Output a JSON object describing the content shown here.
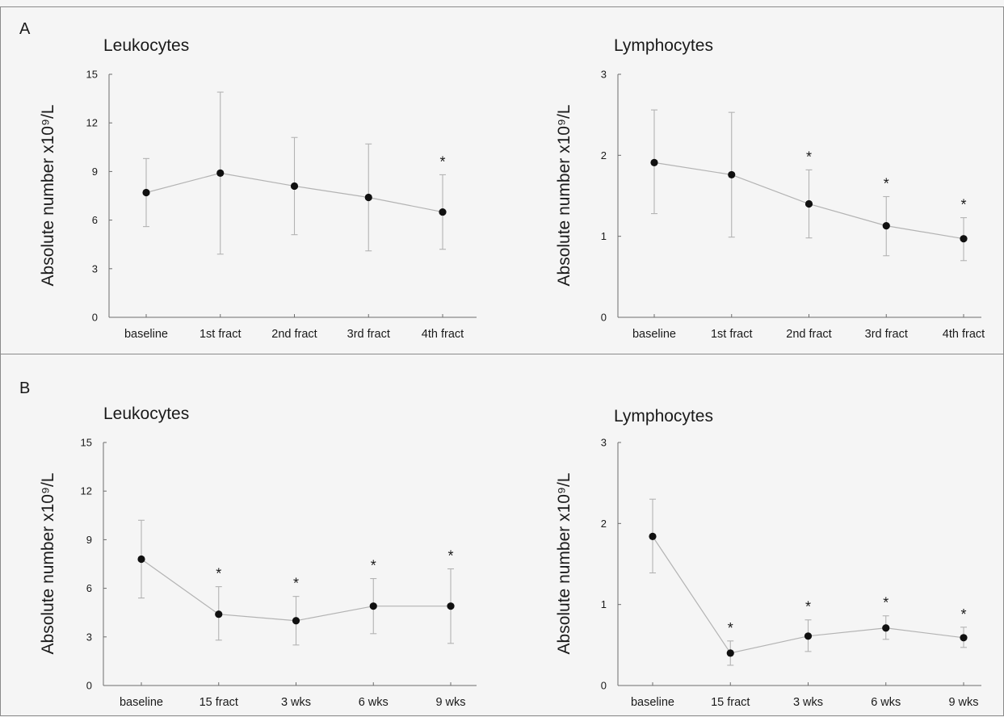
{
  "panels": [
    {
      "label": "A"
    },
    {
      "label": "B"
    }
  ],
  "chart_data": [
    {
      "type": "line",
      "panel": "A",
      "title": "Leukocytes",
      "ylabel": "Absolute number x10⁹/L",
      "xlabel": "",
      "ylim": [
        0,
        15
      ],
      "yticks": [
        "0",
        "3",
        "6",
        "9",
        "12",
        "15"
      ],
      "categories": [
        "baseline",
        "1st fract",
        "2nd fract",
        "3rd fract",
        "4th fract"
      ],
      "values": [
        7.7,
        8.9,
        8.1,
        7.4,
        6.5
      ],
      "error_low": [
        5.6,
        3.9,
        5.1,
        4.1,
        4.2
      ],
      "error_high": [
        9.8,
        13.9,
        11.1,
        10.7,
        8.8
      ],
      "significance": [
        "",
        "",
        "",
        "",
        "*"
      ]
    },
    {
      "type": "line",
      "panel": "A",
      "title": "Lymphocytes",
      "ylabel": "Absolute number x10⁹/L",
      "xlabel": "",
      "ylim": [
        0,
        3
      ],
      "yticks": [
        "0",
        "1",
        "2",
        "3"
      ],
      "categories": [
        "baseline",
        "1st fract",
        "2nd fract",
        "3rd fract",
        "4th fract"
      ],
      "values": [
        1.91,
        1.76,
        1.4,
        1.13,
        0.97
      ],
      "error_low": [
        1.28,
        0.99,
        0.98,
        0.76,
        0.7
      ],
      "error_high": [
        2.56,
        2.53,
        1.82,
        1.49,
        1.23
      ],
      "significance": [
        "",
        "",
        "*",
        "*",
        "*"
      ]
    },
    {
      "type": "line",
      "panel": "B",
      "title": "Leukocytes",
      "ylabel": "Absolute number x10⁹/L",
      "xlabel": "",
      "ylim": [
        0,
        15
      ],
      "yticks": [
        "0",
        "3",
        "6",
        "9",
        "12",
        "15"
      ],
      "categories": [
        "baseline",
        "15 fract",
        "3 wks",
        "6 wks",
        "9 wks"
      ],
      "values": [
        7.8,
        4.4,
        4.0,
        4.9,
        4.9
      ],
      "error_low": [
        5.4,
        2.8,
        2.5,
        3.2,
        2.6
      ],
      "error_high": [
        10.2,
        6.1,
        5.5,
        6.6,
        7.2
      ],
      "significance": [
        "",
        "*",
        "*",
        "*",
        "*"
      ]
    },
    {
      "type": "line",
      "panel": "B",
      "title": "Lymphocytes",
      "ylabel": "Absolute number x10⁹/L",
      "xlabel": "",
      "ylim": [
        0,
        3
      ],
      "yticks": [
        "0",
        "1",
        "2",
        "3"
      ],
      "categories": [
        "baseline",
        "15 fract",
        "3 wks",
        "6 wks",
        "9 wks"
      ],
      "values": [
        1.84,
        0.4,
        0.61,
        0.71,
        0.59
      ],
      "error_low": [
        1.39,
        0.25,
        0.42,
        0.57,
        0.47
      ],
      "error_high": [
        2.3,
        0.55,
        0.81,
        0.86,
        0.72
      ],
      "significance": [
        "",
        "*",
        "*",
        "*",
        "*"
      ]
    }
  ]
}
